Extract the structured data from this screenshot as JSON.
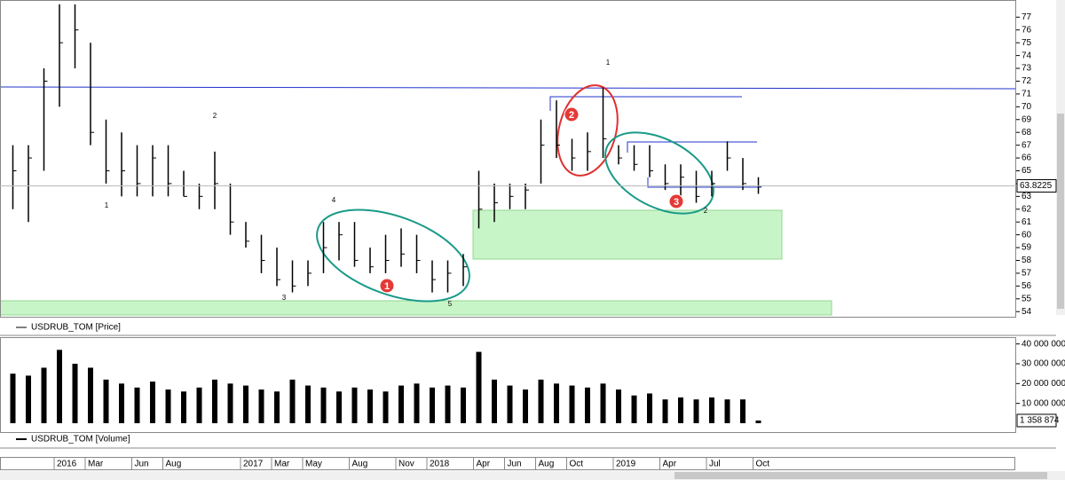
{
  "chart_data": [
    {
      "type": "hlc",
      "legend": "USDRUB_TOM [Price]",
      "color": "#000000",
      "x": [
        "2015-10",
        "2015-11",
        "2015-12",
        "2016-01",
        "2016-02",
        "2016-03",
        "2016-04",
        "2016-05",
        "2016-06",
        "2016-07",
        "2016-08",
        "2016-09",
        "2016-10",
        "2016-11",
        "2016-12",
        "2017-01",
        "2017-02",
        "2017-03",
        "2017-04",
        "2017-05",
        "2017-06",
        "2017-07",
        "2017-08",
        "2017-09",
        "2017-10",
        "2017-11",
        "2017-12",
        "2018-01",
        "2018-02",
        "2018-03",
        "2018-04",
        "2018-05",
        "2018-06",
        "2018-07",
        "2018-08",
        "2018-09",
        "2018-10",
        "2018-11",
        "2018-12",
        "2019-01",
        "2019-02",
        "2019-03",
        "2019-04",
        "2019-05",
        "2019-06",
        "2019-07",
        "2019-08",
        "2019-09",
        "2019-10"
      ],
      "high": [
        67,
        67,
        73,
        78,
        78,
        75,
        69,
        68,
        67,
        67,
        67,
        65,
        64,
        66.5,
        64,
        61,
        60,
        59,
        58,
        58,
        61,
        61,
        61,
        59,
        60,
        60.5,
        60,
        58,
        58,
        58.5,
        65,
        64,
        64,
        64,
        69,
        70.5,
        67.5,
        68,
        71.5,
        67,
        67,
        67,
        65.5,
        65.5,
        65,
        65,
        67.3,
        66,
        64.5
      ],
      "low": [
        62,
        61,
        65,
        70,
        73,
        67,
        64,
        63,
        63,
        63,
        63,
        63,
        62,
        62,
        60,
        59,
        57,
        56,
        55.5,
        56,
        57,
        58,
        57.5,
        57,
        57,
        57.5,
        57,
        55.5,
        55.5,
        56,
        60.5,
        61,
        62,
        62,
        64,
        66,
        65,
        65,
        66,
        65.5,
        65,
        64.5,
        63.5,
        63,
        62.5,
        63,
        65,
        63.5,
        63.2
      ],
      "close": [
        65,
        66,
        72,
        75,
        76,
        68,
        65,
        65,
        64,
        66,
        64,
        63,
        63,
        64,
        61,
        59.5,
        58,
        56.5,
        56,
        57,
        59,
        60,
        58,
        57.5,
        58,
        58.5,
        58,
        56.5,
        57,
        57.5,
        62,
        62.5,
        63,
        63.5,
        67,
        67,
        66,
        66.5,
        67.5,
        66,
        65.5,
        65,
        64,
        64.5,
        63,
        64,
        66,
        64,
        63.8
      ],
      "last_price": 63.8225,
      "ylim": [
        53.6,
        78.2
      ],
      "yticks": [
        54,
        55,
        56,
        57,
        58,
        59,
        60,
        61,
        62,
        63,
        64,
        65,
        66,
        67,
        68,
        69,
        70,
        71,
        72,
        73,
        74,
        75,
        76,
        77
      ],
      "xticks": [
        {
          "value": "2016-01",
          "label": "2016"
        },
        {
          "value": "2016-03",
          "label": "Mar"
        },
        {
          "value": "2016-06",
          "label": "Jun"
        },
        {
          "value": "2016-08",
          "label": "Aug"
        },
        {
          "value": "2017-01",
          "label": "2017"
        },
        {
          "value": "2017-03",
          "label": "Mar"
        },
        {
          "value": "2017-05",
          "label": "May"
        },
        {
          "value": "2017-08",
          "label": "Aug"
        },
        {
          "value": "2017-11",
          "label": "Nov"
        },
        {
          "value": "2018-01",
          "label": "2018"
        },
        {
          "value": "2018-04",
          "label": "Apr"
        },
        {
          "value": "2018-06",
          "label": "Jun"
        },
        {
          "value": "2018-08",
          "label": "Aug"
        },
        {
          "value": "2018-10",
          "label": "Oct"
        },
        {
          "value": "2019-01",
          "label": "2019"
        },
        {
          "value": "2019-04",
          "label": "Apr"
        },
        {
          "value": "2019-07",
          "label": "Jul"
        },
        {
          "value": "2019-10",
          "label": "Oct"
        }
      ],
      "annotations": [
        "1",
        "1",
        "2",
        "2",
        "3",
        "4",
        "5"
      ],
      "markers": [
        "1",
        "2",
        "3"
      ]
    },
    {
      "type": "bar",
      "legend": "USDRUB_TOM [Volume]",
      "color": "#000000",
      "x": [
        "2015-10",
        "2015-11",
        "2015-12",
        "2016-01",
        "2016-02",
        "2016-03",
        "2016-04",
        "2016-05",
        "2016-06",
        "2016-07",
        "2016-08",
        "2016-09",
        "2016-10",
        "2016-11",
        "2016-12",
        "2017-01",
        "2017-02",
        "2017-03",
        "2017-04",
        "2017-05",
        "2017-06",
        "2017-07",
        "2017-08",
        "2017-09",
        "2017-10",
        "2017-11",
        "2017-12",
        "2018-01",
        "2018-02",
        "2018-03",
        "2018-04",
        "2018-05",
        "2018-06",
        "2018-07",
        "2018-08",
        "2018-09",
        "2018-10",
        "2018-11",
        "2018-12",
        "2019-01",
        "2019-02",
        "2019-03",
        "2019-04",
        "2019-05",
        "2019-06",
        "2019-07",
        "2019-08",
        "2019-09",
        "2019-10"
      ],
      "values": [
        25000000,
        24000000,
        28000000,
        37000000,
        30000000,
        28000000,
        22000000,
        20000000,
        18000000,
        21000000,
        17000000,
        16000000,
        18000000,
        22000000,
        20000000,
        19000000,
        17000000,
        16000000,
        22000000,
        19000000,
        18000000,
        16000000,
        18000000,
        17000000,
        16000000,
        19000000,
        20000000,
        18000000,
        19000000,
        18000000,
        36000000,
        22000000,
        19000000,
        17000000,
        22000000,
        20000000,
        19000000,
        18000000,
        20000000,
        17000000,
        14000000,
        15000000,
        12000000,
        13000000,
        12000000,
        13000000,
        12000000,
        12000000,
        1358874
      ],
      "value_labels": [
        null,
        null,
        null,
        null,
        null,
        null,
        null,
        null,
        null,
        null,
        null,
        null,
        null,
        null,
        null,
        null,
        null,
        null,
        null,
        null,
        null,
        null,
        null,
        null,
        null,
        null,
        null,
        null,
        null,
        null,
        null,
        null,
        null,
        null,
        null,
        null,
        null,
        null,
        null,
        null,
        null,
        null,
        null,
        null,
        null,
        null,
        null,
        null,
        "1 358 874"
      ],
      "ylim": [
        0,
        44000000
      ],
      "yticks": [
        {
          "value": 10000000,
          "label": "10 000 000"
        },
        {
          "value": 20000000,
          "label": "20 000 000"
        },
        {
          "value": 30000000,
          "label": "30 000 000"
        },
        {
          "value": 40000000,
          "label": "40 000 000"
        }
      ]
    }
  ]
}
